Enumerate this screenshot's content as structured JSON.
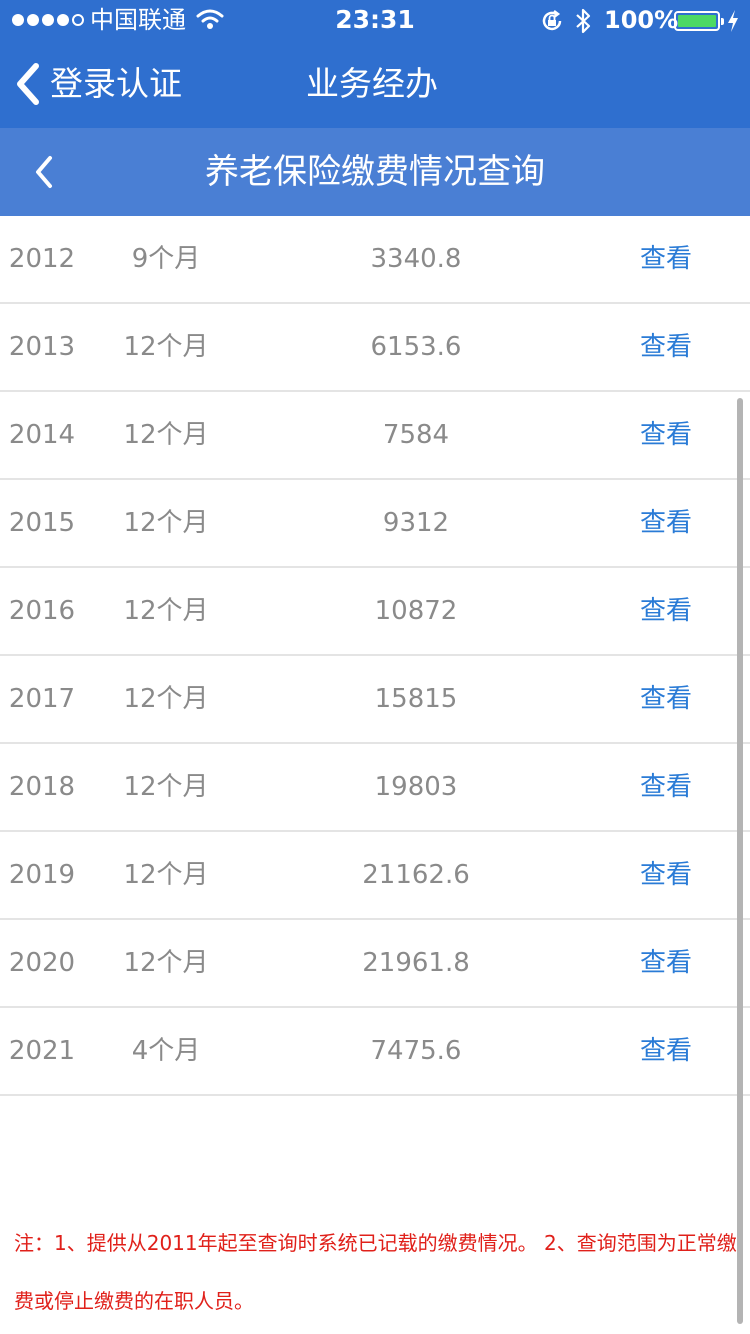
{
  "status_bar": {
    "carrier": "中国联通",
    "time": "23:31",
    "battery": "100%",
    "icons": [
      "signal-dots",
      "wifi-icon",
      "rotation-lock-icon",
      "bluetooth-icon",
      "battery-icon",
      "charging-bolt-icon"
    ]
  },
  "nav": {
    "back_label": "登录认证",
    "title": "业务经办"
  },
  "page": {
    "title": "养老保险缴费情况查询"
  },
  "records": [
    {
      "year": "2012",
      "months": "9个月",
      "amount": "3340.8",
      "action": "查看"
    },
    {
      "year": "2013",
      "months": "12个月",
      "amount": "6153.6",
      "action": "查看"
    },
    {
      "year": "2014",
      "months": "12个月",
      "amount": "7584",
      "action": "查看"
    },
    {
      "year": "2015",
      "months": "12个月",
      "amount": "9312",
      "action": "查看"
    },
    {
      "year": "2016",
      "months": "12个月",
      "amount": "10872",
      "action": "查看"
    },
    {
      "year": "2017",
      "months": "12个月",
      "amount": "15815",
      "action": "查看"
    },
    {
      "year": "2018",
      "months": "12个月",
      "amount": "19803",
      "action": "查看"
    },
    {
      "year": "2019",
      "months": "12个月",
      "amount": "21162.6",
      "action": "查看"
    },
    {
      "year": "2020",
      "months": "12个月",
      "amount": "21961.8",
      "action": "查看"
    },
    {
      "year": "2021",
      "months": "4个月",
      "amount": "7475.6",
      "action": "查看"
    }
  ],
  "note": "注：1、提供从2011年起至查询时系统已记载的缴费情况。 2、查询范围为正常缴费或停止缴费的在职人员。",
  "colors": {
    "nav_bg": "#2f6fcf",
    "header_bg": "#4a7fd4",
    "link": "#2a7bd6",
    "note": "#e0201a",
    "battery": "#4cd964"
  }
}
